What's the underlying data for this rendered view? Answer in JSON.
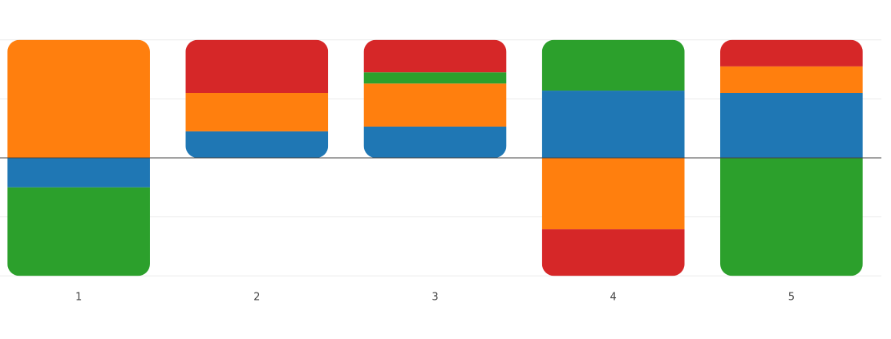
{
  "chart_data": {
    "type": "bar",
    "barmode": "relative",
    "categories": [
      "1",
      "2",
      "3",
      "4",
      "5"
    ],
    "series": [
      {
        "color": "#1f77b4",
        "values": [
          -0.5,
          0.45,
          0.53,
          1.14,
          1.1
        ]
      },
      {
        "color": "#ff7f0e",
        "values": [
          2.0,
          0.65,
          0.73,
          -1.21,
          0.45
        ]
      },
      {
        "color": "#2ca02c",
        "values": [
          -1.5,
          0,
          0.19,
          0.86,
          -2.0
        ]
      },
      {
        "color": "#d62728",
        "values": [
          0,
          0.9,
          0.55,
          -0.79,
          0.45
        ]
      }
    ],
    "ylim": [
      -2.2,
      2.2
    ],
    "yticks": [
      -2,
      -1,
      0,
      1,
      2
    ],
    "grid": true
  }
}
